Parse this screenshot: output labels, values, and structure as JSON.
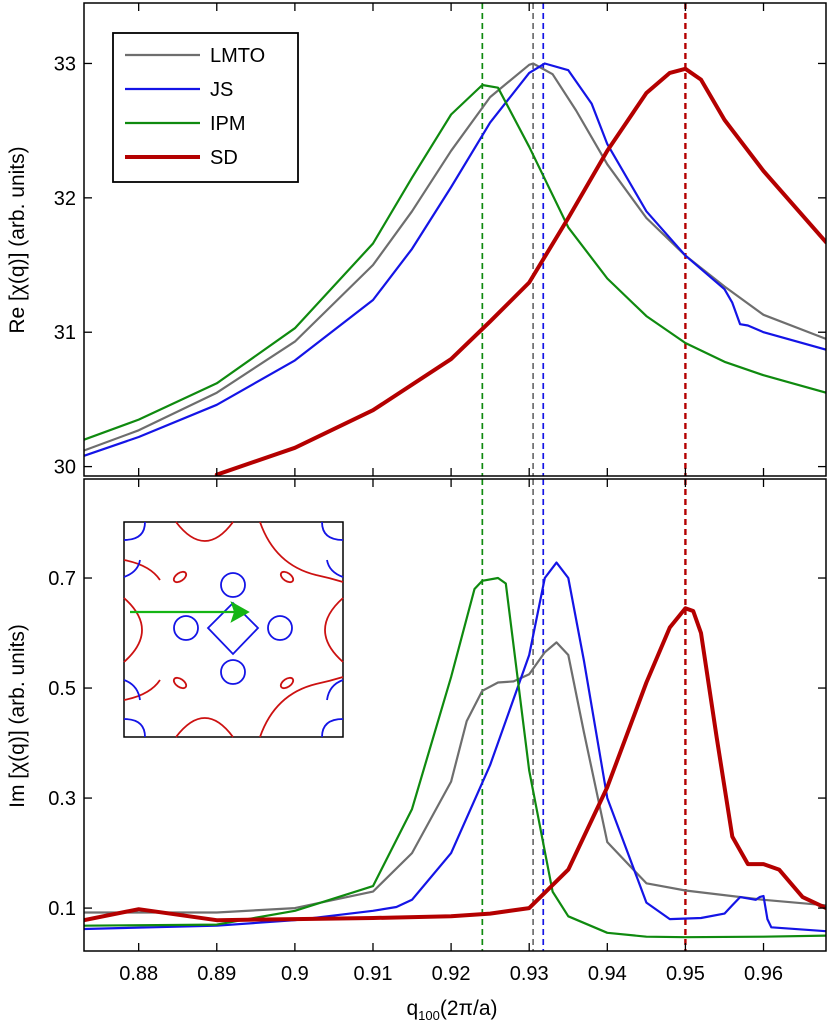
{
  "colors": {
    "LMTO": "#6e6e6e",
    "JS": "#1414e6",
    "IPM": "#0f8a0f",
    "SD": "#b40000",
    "inset_red": "#cc1111",
    "inset_blue": "#1414e6",
    "inset_arrow": "#15b515"
  },
  "chart_data": [
    {
      "type": "line",
      "panel": "top",
      "ylabel": "Re [χ(q)] (arb. units)",
      "xlim": [
        0.873,
        0.968
      ],
      "ylim": [
        29.93,
        33.45
      ],
      "yticks": [
        30,
        31,
        32,
        33
      ],
      "ytick_labels": [
        "30",
        "31",
        "32",
        "33"
      ],
      "legend": {
        "position": "top-left",
        "entries": [
          "LMTO",
          "JS",
          "IPM",
          "SD"
        ]
      },
      "vlines": [
        {
          "x": 0.924,
          "series": "IPM"
        },
        {
          "x": 0.9305,
          "series": "LMTO"
        },
        {
          "x": 0.9318,
          "series": "JS"
        },
        {
          "x": 0.95,
          "series": "SD"
        }
      ],
      "series": [
        {
          "name": "LMTO",
          "x": [
            0.873,
            0.88,
            0.89,
            0.9,
            0.91,
            0.915,
            0.92,
            0.925,
            0.93,
            0.9305,
            0.933,
            0.936,
            0.94,
            0.945,
            0.95,
            0.955,
            0.96,
            0.968
          ],
          "y": [
            30.12,
            30.27,
            30.55,
            30.93,
            31.5,
            31.9,
            32.35,
            32.75,
            32.99,
            33.0,
            32.92,
            32.65,
            32.25,
            31.85,
            31.57,
            31.34,
            31.13,
            30.95
          ]
        },
        {
          "name": "JS",
          "x": [
            0.873,
            0.88,
            0.89,
            0.9,
            0.91,
            0.915,
            0.92,
            0.925,
            0.93,
            0.932,
            0.935,
            0.938,
            0.94,
            0.945,
            0.95,
            0.955,
            0.956,
            0.957,
            0.958,
            0.96,
            0.968
          ],
          "y": [
            30.08,
            30.22,
            30.46,
            30.79,
            31.24,
            31.62,
            32.08,
            32.56,
            32.93,
            33.0,
            32.95,
            32.7,
            32.4,
            31.9,
            31.57,
            31.32,
            31.22,
            31.06,
            31.05,
            31.0,
            30.87
          ]
        },
        {
          "name": "IPM",
          "x": [
            0.873,
            0.88,
            0.89,
            0.9,
            0.91,
            0.915,
            0.92,
            0.924,
            0.926,
            0.93,
            0.935,
            0.94,
            0.945,
            0.95,
            0.955,
            0.96,
            0.968
          ],
          "y": [
            30.2,
            30.35,
            30.62,
            31.03,
            31.66,
            32.15,
            32.62,
            32.84,
            32.82,
            32.38,
            31.78,
            31.4,
            31.12,
            30.92,
            30.78,
            30.68,
            30.55
          ]
        },
        {
          "name": "SD",
          "x": [
            0.89,
            0.9,
            0.91,
            0.92,
            0.925,
            0.93,
            0.935,
            0.94,
            0.945,
            0.948,
            0.95,
            0.952,
            0.955,
            0.96,
            0.968
          ],
          "y": [
            29.94,
            30.14,
            30.42,
            30.8,
            31.08,
            31.37,
            31.85,
            32.35,
            32.78,
            32.93,
            32.96,
            32.88,
            32.58,
            32.2,
            31.67
          ]
        }
      ]
    },
    {
      "type": "line",
      "panel": "bottom",
      "xlabel": "q",
      "xlabel_subscript": "100",
      "xlabel_unit": "(2π/a)",
      "ylabel": "Im [χ(q)] (arb. units)",
      "xlim": [
        0.873,
        0.968
      ],
      "ylim": [
        0.022,
        0.88
      ],
      "xticks": [
        0.88,
        0.89,
        0.9,
        0.91,
        0.92,
        0.93,
        0.94,
        0.95,
        0.96
      ],
      "xtick_labels": [
        "0.88",
        "0.89",
        "0.9",
        "0.91",
        "0.92",
        "0.93",
        "0.94",
        "0.95",
        "0.96"
      ],
      "yticks": [
        0.1,
        0.3,
        0.5,
        0.7
      ],
      "ytick_labels": [
        "0.1",
        "0.3",
        "0.5",
        "0.7"
      ],
      "vlines": [
        {
          "x": 0.924,
          "series": "IPM"
        },
        {
          "x": 0.9305,
          "series": "LMTO"
        },
        {
          "x": 0.9318,
          "series": "JS"
        },
        {
          "x": 0.95,
          "series": "SD"
        }
      ],
      "series": [
        {
          "name": "LMTO",
          "x": [
            0.873,
            0.89,
            0.9,
            0.91,
            0.915,
            0.92,
            0.922,
            0.924,
            0.926,
            0.928,
            0.93,
            0.932,
            0.9335,
            0.935,
            0.937,
            0.94,
            0.945,
            0.95,
            0.96,
            0.968
          ],
          "y": [
            0.092,
            0.092,
            0.1,
            0.13,
            0.2,
            0.33,
            0.44,
            0.495,
            0.51,
            0.512,
            0.525,
            0.565,
            0.583,
            0.56,
            0.42,
            0.22,
            0.145,
            0.132,
            0.115,
            0.105
          ]
        },
        {
          "name": "JS",
          "x": [
            0.873,
            0.89,
            0.9,
            0.91,
            0.913,
            0.915,
            0.92,
            0.925,
            0.93,
            0.932,
            0.9335,
            0.935,
            0.937,
            0.94,
            0.945,
            0.948,
            0.952,
            0.955,
            0.956,
            0.957,
            0.959,
            0.9595,
            0.96,
            0.9605,
            0.961,
            0.968
          ],
          "y": [
            0.062,
            0.068,
            0.078,
            0.095,
            0.102,
            0.115,
            0.2,
            0.36,
            0.56,
            0.7,
            0.728,
            0.7,
            0.55,
            0.3,
            0.11,
            0.08,
            0.082,
            0.09,
            0.105,
            0.12,
            0.115,
            0.12,
            0.122,
            0.08,
            0.065,
            0.058
          ]
        },
        {
          "name": "IPM",
          "x": [
            0.873,
            0.89,
            0.9,
            0.91,
            0.915,
            0.92,
            0.923,
            0.924,
            0.926,
            0.927,
            0.93,
            0.933,
            0.935,
            0.94,
            0.945,
            0.95,
            0.96,
            0.968
          ],
          "y": [
            0.068,
            0.07,
            0.095,
            0.14,
            0.28,
            0.52,
            0.68,
            0.695,
            0.7,
            0.69,
            0.35,
            0.13,
            0.085,
            0.055,
            0.048,
            0.047,
            0.048,
            0.05
          ]
        },
        {
          "name": "SD",
          "x": [
            0.873,
            0.88,
            0.885,
            0.89,
            0.9,
            0.91,
            0.92,
            0.925,
            0.93,
            0.935,
            0.94,
            0.945,
            0.948,
            0.95,
            0.951,
            0.952,
            0.954,
            0.956,
            0.958,
            0.96,
            0.962,
            0.965,
            0.968
          ],
          "y": [
            0.078,
            0.098,
            0.088,
            0.078,
            0.08,
            0.082,
            0.085,
            0.09,
            0.1,
            0.17,
            0.32,
            0.51,
            0.61,
            0.645,
            0.64,
            0.6,
            0.41,
            0.23,
            0.18,
            0.18,
            0.17,
            0.12,
            0.1
          ]
        }
      ]
    }
  ]
}
